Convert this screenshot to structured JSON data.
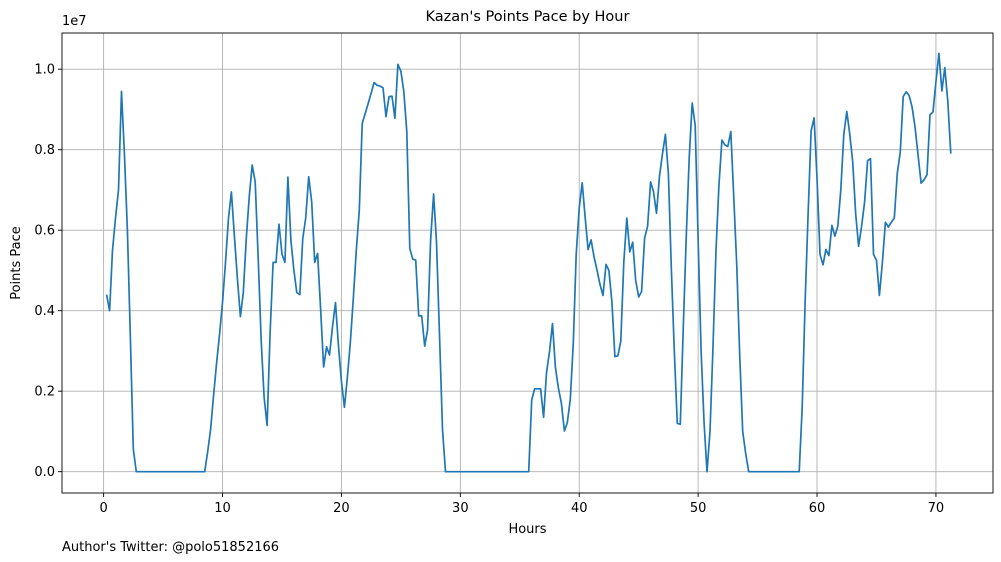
{
  "footer_text": "Author's Twitter: @polo51852166",
  "chart_data": {
    "type": "line",
    "title": "Kazan's Points Pace by Hour",
    "xlabel": "Hours",
    "ylabel": "Points Pace",
    "y_offset_label": "1e7",
    "xlim": [
      -3.5,
      74.8
    ],
    "ylim": [
      -530000,
      10900000
    ],
    "x_ticks": [
      0,
      10,
      20,
      30,
      40,
      50,
      60,
      70
    ],
    "x_tick_labels": [
      "0",
      "10",
      "20",
      "30",
      "40",
      "50",
      "60",
      "70"
    ],
    "y_ticks": [
      0,
      2000000,
      4000000,
      6000000,
      8000000,
      10000000
    ],
    "y_tick_labels": [
      "0.0",
      "0.2",
      "0.4",
      "0.6",
      "0.8",
      "1.0"
    ],
    "grid": true,
    "color": "#1f77b4",
    "x": [
      0.25,
      0.5,
      0.75,
      1.0,
      1.25,
      1.5,
      1.75,
      2.0,
      2.25,
      2.5,
      2.75,
      3.0,
      3.5,
      4.0,
      5.0,
      6.0,
      7.0,
      8.0,
      8.5,
      8.75,
      9.0,
      9.25,
      9.5,
      9.75,
      10.0,
      10.25,
      10.5,
      10.75,
      11.0,
      11.25,
      11.5,
      11.75,
      12.0,
      12.25,
      12.5,
      12.75,
      13.0,
      13.25,
      13.5,
      13.75,
      14.0,
      14.25,
      14.5,
      14.75,
      15.0,
      15.25,
      15.5,
      15.75,
      16.0,
      16.25,
      16.5,
      16.75,
      17.0,
      17.25,
      17.5,
      17.75,
      18.0,
      18.25,
      18.5,
      18.75,
      19.0,
      19.25,
      19.5,
      19.75,
      20.0,
      20.25,
      20.5,
      20.75,
      21.0,
      21.25,
      21.5,
      21.75,
      22.0,
      22.25,
      22.5,
      22.75,
      23.0,
      23.25,
      23.5,
      23.75,
      24.0,
      24.25,
      24.5,
      24.75,
      25.0,
      25.25,
      25.5,
      25.75,
      26.0,
      26.25,
      26.5,
      26.75,
      27.0,
      27.25,
      27.5,
      27.75,
      28.0,
      28.25,
      28.5,
      28.75,
      29.0,
      30.0,
      31.0,
      32.0,
      33.0,
      34.0,
      35.0,
      35.75,
      36.0,
      36.25,
      36.5,
      36.75,
      37.0,
      37.25,
      37.5,
      37.75,
      38.0,
      38.25,
      38.5,
      38.75,
      39.0,
      39.25,
      39.5,
      39.75,
      40.0,
      40.25,
      40.5,
      40.75,
      41.0,
      41.25,
      41.5,
      41.75,
      42.0,
      42.25,
      42.5,
      42.75,
      43.0,
      43.25,
      43.5,
      43.75,
      44.0,
      44.25,
      44.5,
      44.75,
      45.0,
      45.25,
      45.5,
      45.75,
      46.0,
      46.25,
      46.5,
      46.75,
      47.0,
      47.25,
      47.5,
      47.75,
      48.0,
      48.25,
      48.5,
      48.75,
      49.0,
      49.25,
      49.5,
      49.75,
      50.0,
      50.25,
      50.5,
      50.75,
      51.0,
      51.25,
      51.5,
      51.75,
      52.0,
      52.25,
      52.5,
      52.75,
      53.0,
      53.25,
      53.5,
      53.75,
      54.0,
      54.25,
      54.5,
      55.0,
      56.0,
      57.0,
      58.0,
      58.5,
      58.75,
      59.0,
      59.25,
      59.5,
      59.75,
      60.0,
      60.25,
      60.5,
      60.75,
      61.0,
      61.25,
      61.5,
      61.75,
      62.0,
      62.25,
      62.5,
      62.75,
      63.0,
      63.25,
      63.5,
      63.75,
      64.0,
      64.25,
      64.5,
      64.75,
      65.0,
      65.25,
      65.5,
      65.75,
      66.0,
      66.25,
      66.5,
      66.75,
      67.0,
      67.25,
      67.5,
      67.75,
      68.0,
      68.25,
      68.5,
      68.75,
      69.0,
      69.25,
      69.5,
      69.75,
      70.0,
      70.25,
      70.5,
      70.75,
      71.0,
      71.25
    ],
    "y": [
      4400000,
      4000000,
      5500000,
      6300000,
      7000000,
      9450000,
      7900000,
      6000000,
      3300000,
      560000,
      0,
      0,
      0,
      0,
      0,
      0,
      0,
      0,
      0,
      500000,
      1050000,
      1900000,
      2700000,
      3400000,
      4200000,
      5200000,
      6300000,
      6950000,
      5850000,
      4800000,
      3850000,
      4450000,
      5800000,
      6850000,
      7620000,
      7200000,
      5300000,
      3250000,
      1850000,
      1150000,
      3450000,
      5200000,
      5200000,
      6150000,
      5400000,
      5200000,
      7320000,
      5750000,
      5000000,
      4450000,
      4400000,
      5800000,
      6300000,
      7330000,
      6700000,
      5200000,
      5420000,
      4050000,
      2600000,
      3100000,
      2900000,
      3600000,
      4200000,
      3150000,
      2250000,
      1600000,
      2350000,
      3200000,
      4300000,
      5500000,
      6500000,
      8650000,
      8900000,
      9150000,
      9400000,
      9670000,
      9600000,
      9580000,
      9540000,
      8820000,
      9320000,
      9330000,
      8780000,
      10120000,
      9950000,
      9450000,
      8450000,
      5550000,
      5280000,
      5260000,
      3870000,
      3870000,
      3120000,
      3530000,
      5750000,
      6900000,
      5710000,
      3400000,
      1050000,
      0,
      0,
      0,
      0,
      0,
      0,
      0,
      0,
      0,
      1780000,
      2060000,
      2060000,
      2060000,
      1350000,
      2460000,
      2980000,
      3680000,
      2590000,
      2080000,
      1700000,
      1010000,
      1220000,
      1800000,
      3200000,
      5400000,
      6550000,
      7180000,
      6300000,
      5520000,
      5760000,
      5330000,
      5000000,
      4650000,
      4380000,
      5150000,
      5000000,
      4220000,
      2860000,
      2880000,
      3250000,
      5200000,
      6300000,
      5460000,
      5700000,
      4750000,
      4340000,
      4480000,
      5800000,
      6100000,
      7200000,
      6960000,
      6420000,
      7350000,
      7900000,
      8380000,
      7400000,
      5000000,
      3000000,
      1200000,
      1180000,
      3600000,
      5800000,
      7800000,
      9160000,
      8600000,
      5800000,
      3000000,
      1200000,
      0,
      1000000,
      3100000,
      5500000,
      7100000,
      8240000,
      8120000,
      8080000,
      8450000,
      6800000,
      5100000,
      2900000,
      1000000,
      450000,
      0,
      0,
      0,
      0,
      0,
      0,
      0,
      1600000,
      4200000,
      6400000,
      8470000,
      8790000,
      7300000,
      5400000,
      5140000,
      5520000,
      5370000,
      6120000,
      5850000,
      6100000,
      7000000,
      8380000,
      8950000,
      8400000,
      7700000,
      6400000,
      5600000,
      6100000,
      6700000,
      7730000,
      7780000,
      5400000,
      5250000,
      4380000,
      5200000,
      6200000,
      6080000,
      6200000,
      6300000,
      7420000,
      7950000,
      9320000,
      9440000,
      9340000,
      9060000,
      8550000,
      7860000,
      7170000,
      7250000,
      7380000,
      8870000,
      8940000,
      9680000,
      10390000,
      9460000,
      10040000,
      9200000,
      7900000
    ]
  }
}
